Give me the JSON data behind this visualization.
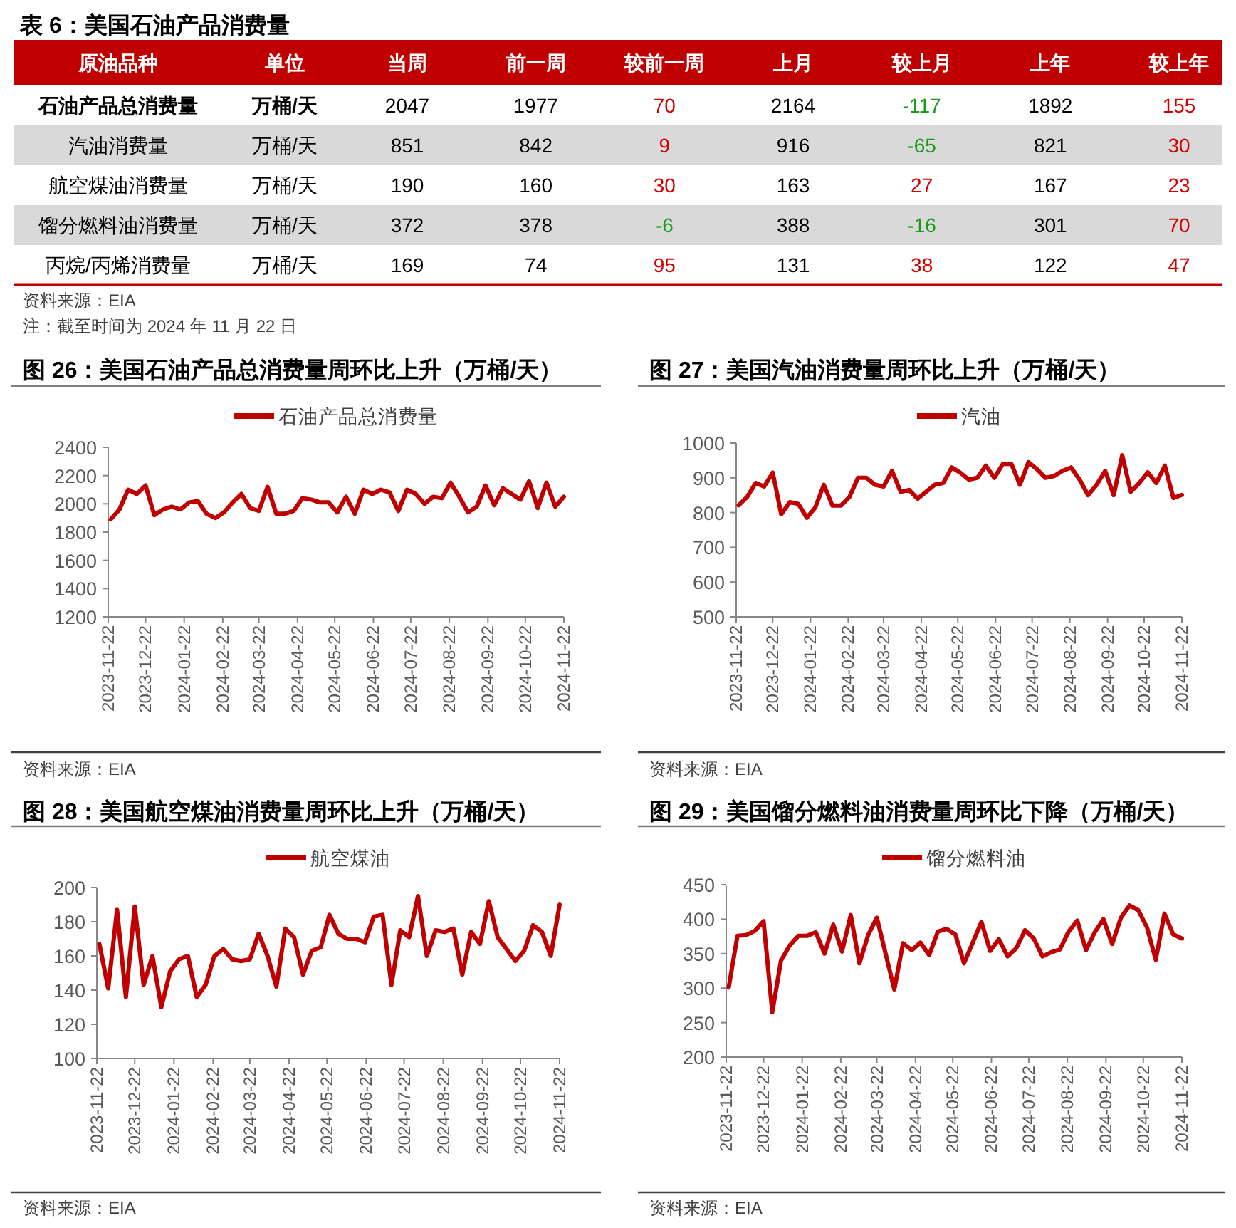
{
  "chart_data": [
    {
      "type": "heatmap",
      "title": "表 6：美国石油产品消费量",
      "ylabel": "原油品种",
      "y2label": "单位",
      "data_labels": true,
      "categories": [
        "当周",
        "前一周",
        "较前一周",
        "上月",
        "较上月",
        "上年",
        "较上年"
      ],
      "y_categories": [
        "石油产品总消费量",
        "汽油消费量",
        "航空煤油消费量",
        "馏分燃料油消费量",
        "丙烷/丙烯消费量"
      ],
      "y2_categories": [
        "万桶/天",
        "万桶/天",
        "万桶/天",
        "万桶/天",
        "万桶/天"
      ],
      "cells": [
        [
          2047,
          1977,
          70,
          2164,
          -117,
          1892,
          155
        ],
        [
          851,
          842,
          9,
          916,
          -65,
          821,
          30
        ],
        [
          190,
          160,
          30,
          163,
          27,
          167,
          23
        ],
        [
          372,
          378,
          -6,
          388,
          -16,
          301,
          70
        ],
        [
          169,
          74,
          95,
          131,
          38,
          122,
          47
        ]
      ],
      "colors": [
        [
          "#000000",
          "#000000",
          "#d40000",
          "#000000",
          "#1a9a1a",
          "#000000",
          "#d40000"
        ],
        [
          "#000000",
          "#000000",
          "#d40000",
          "#000000",
          "#1a9a1a",
          "#000000",
          "#d40000"
        ],
        [
          "#000000",
          "#000000",
          "#d40000",
          "#000000",
          "#d40000",
          "#000000",
          "#d40000"
        ],
        [
          "#000000",
          "#000000",
          "#1a9a1a",
          "#000000",
          "#1a9a1a",
          "#000000",
          "#d40000"
        ],
        [
          "#000000",
          "#000000",
          "#d40000",
          "#000000",
          "#d40000",
          "#000000",
          "#d40000"
        ]
      ],
      "annotations": [
        "资料来源：EIA",
        "注：截至时间为 2024 年 11 月 22 日"
      ]
    },
    {
      "type": "line",
      "title": "图 26：美国石油产品总消费量周环比上升（万桶/天）",
      "legend": "top",
      "x": [
        "2023-11-24",
        "2023-12-01",
        "2023-12-08",
        "2023-12-15",
        "2023-12-22",
        "2023-12-29",
        "2024-01-05",
        "2024-01-12",
        "2024-01-19",
        "2024-01-26",
        "2024-02-02",
        "2024-02-09",
        "2024-02-16",
        "2024-02-23",
        "2024-03-01",
        "2024-03-08",
        "2024-03-15",
        "2024-03-22",
        "2024-03-29",
        "2024-04-05",
        "2024-04-12",
        "2024-04-19",
        "2024-04-26",
        "2024-05-03",
        "2024-05-10",
        "2024-05-17",
        "2024-05-24",
        "2024-05-31",
        "2024-06-07",
        "2024-06-14",
        "2024-06-21",
        "2024-06-28",
        "2024-07-05",
        "2024-07-12",
        "2024-07-19",
        "2024-07-26",
        "2024-08-02",
        "2024-08-09",
        "2024-08-16",
        "2024-08-23",
        "2024-08-30",
        "2024-09-06",
        "2024-09-13",
        "2024-09-20",
        "2024-09-27",
        "2024-10-04",
        "2024-10-11",
        "2024-10-18",
        "2024-10-25",
        "2024-11-01",
        "2024-11-08",
        "2024-11-15",
        "2024-11-22"
      ],
      "xlim": [
        "2023-11-22",
        "2024-11-22"
      ],
      "xticks": [
        "2023-11-22",
        "2023-12-22",
        "2024-01-22",
        "2024-02-22",
        "2024-03-22",
        "2024-04-22",
        "2024-05-22",
        "2024-06-22",
        "2024-07-22",
        "2024-08-22",
        "2024-09-22",
        "2024-10-22",
        "2024-11-22"
      ],
      "ylim": [
        1200,
        2400
      ],
      "yticks": [
        1200,
        1400,
        1600,
        1800,
        2000,
        2200,
        2400
      ],
      "series": [
        {
          "name": "石油产品总消费量",
          "color": "#c00000",
          "values": [
            1890,
            1960,
            2100,
            2070,
            2130,
            1920,
            1960,
            1980,
            1960,
            2010,
            2020,
            1930,
            1900,
            1940,
            2010,
            2070,
            1970,
            1950,
            2120,
            1930,
            1930,
            1950,
            2040,
            2030,
            2010,
            2010,
            1940,
            2050,
            1930,
            2100,
            2070,
            2100,
            2080,
            1950,
            2100,
            2070,
            2000,
            2050,
            2040,
            2150,
            2050,
            1940,
            1980,
            2130,
            1990,
            2110,
            2070,
            2030,
            2160,
            1970,
            2150,
            1980,
            2050
          ]
        }
      ],
      "annotations": [
        "资料来源：EIA"
      ]
    },
    {
      "type": "line",
      "title": "图 27：美国汽油消费量周环比上升（万桶/天）",
      "legend": "top",
      "x": [
        "2023-11-24",
        "2023-12-01",
        "2023-12-08",
        "2023-12-15",
        "2023-12-22",
        "2023-12-29",
        "2024-01-05",
        "2024-01-12",
        "2024-01-19",
        "2024-01-26",
        "2024-02-02",
        "2024-02-09",
        "2024-02-16",
        "2024-02-23",
        "2024-03-01",
        "2024-03-08",
        "2024-03-15",
        "2024-03-22",
        "2024-03-29",
        "2024-04-05",
        "2024-04-12",
        "2024-04-19",
        "2024-04-26",
        "2024-05-03",
        "2024-05-10",
        "2024-05-17",
        "2024-05-24",
        "2024-05-31",
        "2024-06-07",
        "2024-06-14",
        "2024-06-21",
        "2024-06-28",
        "2024-07-05",
        "2024-07-12",
        "2024-07-19",
        "2024-07-26",
        "2024-08-02",
        "2024-08-09",
        "2024-08-16",
        "2024-08-23",
        "2024-08-30",
        "2024-09-06",
        "2024-09-13",
        "2024-09-20",
        "2024-09-27",
        "2024-10-04",
        "2024-10-11",
        "2024-10-18",
        "2024-10-25",
        "2024-11-01",
        "2024-11-08",
        "2024-11-15",
        "2024-11-22"
      ],
      "xlim": [
        "2023-11-22",
        "2024-11-22"
      ],
      "xticks": [
        "2023-11-22",
        "2023-12-22",
        "2024-01-22",
        "2024-02-22",
        "2024-03-22",
        "2024-04-22",
        "2024-05-22",
        "2024-06-22",
        "2024-07-22",
        "2024-08-22",
        "2024-09-22",
        "2024-10-22",
        "2024-11-22"
      ],
      "ylim": [
        500,
        1000
      ],
      "yticks": [
        500,
        600,
        700,
        800,
        900,
        1000
      ],
      "series": [
        {
          "name": "汽油",
          "color": "#c00000",
          "values": [
            821,
            845,
            885,
            875,
            915,
            795,
            830,
            825,
            785,
            815,
            880,
            820,
            820,
            845,
            900,
            900,
            880,
            875,
            920,
            860,
            865,
            840,
            860,
            880,
            885,
            930,
            915,
            895,
            900,
            935,
            900,
            940,
            940,
            880,
            945,
            925,
            900,
            905,
            920,
            930,
            895,
            850,
            880,
            920,
            850,
            965,
            860,
            885,
            916,
            885,
            935,
            842,
            851
          ]
        }
      ],
      "annotations": [
        "资料来源：EIA"
      ]
    },
    {
      "type": "line",
      "title": "图 28：美国航空煤油消费量周环比上升（万桶/天）",
      "legend": "top",
      "x": [
        "2023-11-24",
        "2023-12-01",
        "2023-12-08",
        "2023-12-15",
        "2023-12-22",
        "2023-12-29",
        "2024-01-05",
        "2024-01-12",
        "2024-01-19",
        "2024-01-26",
        "2024-02-02",
        "2024-02-09",
        "2024-02-16",
        "2024-02-23",
        "2024-03-01",
        "2024-03-08",
        "2024-03-15",
        "2024-03-22",
        "2024-03-29",
        "2024-04-05",
        "2024-04-12",
        "2024-04-19",
        "2024-04-26",
        "2024-05-03",
        "2024-05-10",
        "2024-05-17",
        "2024-05-24",
        "2024-05-31",
        "2024-06-07",
        "2024-06-14",
        "2024-06-21",
        "2024-06-28",
        "2024-07-05",
        "2024-07-12",
        "2024-07-19",
        "2024-07-26",
        "2024-08-02",
        "2024-08-09",
        "2024-08-16",
        "2024-08-23",
        "2024-08-30",
        "2024-09-06",
        "2024-09-13",
        "2024-09-20",
        "2024-09-27",
        "2024-10-04",
        "2024-10-11",
        "2024-10-18",
        "2024-10-25",
        "2024-11-01",
        "2024-11-08",
        "2024-11-15",
        "2024-11-22"
      ],
      "xlim": [
        "2023-11-22",
        "2024-11-22"
      ],
      "xticks": [
        "2023-11-22",
        "2023-12-22",
        "2024-01-22",
        "2024-02-22",
        "2024-03-22",
        "2024-04-22",
        "2024-05-22",
        "2024-06-22",
        "2024-07-22",
        "2024-08-22",
        "2024-09-22",
        "2024-10-22",
        "2024-11-22"
      ],
      "ylim": [
        100,
        200
      ],
      "yticks": [
        100,
        120,
        140,
        160,
        180,
        200
      ],
      "series": [
        {
          "name": "航空煤油",
          "color": "#c00000",
          "values": [
            167,
            141,
            187,
            136,
            189,
            143,
            160,
            130,
            151,
            158,
            160,
            136,
            143,
            160,
            164,
            158,
            157,
            158,
            173,
            160,
            142,
            176,
            171,
            149,
            163,
            165,
            184,
            173,
            170,
            170,
            168,
            183,
            184,
            143,
            175,
            171,
            195,
            160,
            175,
            174,
            176,
            149,
            174,
            167,
            192,
            171,
            164,
            157,
            163,
            178,
            174,
            160,
            190
          ]
        }
      ],
      "annotations": [
        "资料来源：EIA"
      ]
    },
    {
      "type": "line",
      "title": "图 29：美国馏分燃料油消费量周环比下降（万桶/天）",
      "legend": "top",
      "x": [
        "2023-11-24",
        "2023-12-01",
        "2023-12-08",
        "2023-12-15",
        "2023-12-22",
        "2023-12-29",
        "2024-01-05",
        "2024-01-12",
        "2024-01-19",
        "2024-01-26",
        "2024-02-02",
        "2024-02-09",
        "2024-02-16",
        "2024-02-23",
        "2024-03-01",
        "2024-03-08",
        "2024-03-15",
        "2024-03-22",
        "2024-03-29",
        "2024-04-05",
        "2024-04-12",
        "2024-04-19",
        "2024-04-26",
        "2024-05-03",
        "2024-05-10",
        "2024-05-17",
        "2024-05-24",
        "2024-05-31",
        "2024-06-07",
        "2024-06-14",
        "2024-06-21",
        "2024-06-28",
        "2024-07-05",
        "2024-07-12",
        "2024-07-19",
        "2024-07-26",
        "2024-08-02",
        "2024-08-09",
        "2024-08-16",
        "2024-08-23",
        "2024-08-30",
        "2024-09-06",
        "2024-09-13",
        "2024-09-20",
        "2024-09-27",
        "2024-10-04",
        "2024-10-11",
        "2024-10-18",
        "2024-10-25",
        "2024-11-01",
        "2024-11-08",
        "2024-11-15",
        "2024-11-22"
      ],
      "xlim": [
        "2023-11-22",
        "2024-11-22"
      ],
      "xticks": [
        "2023-11-22",
        "2023-12-22",
        "2024-01-22",
        "2024-02-22",
        "2024-03-22",
        "2024-04-22",
        "2024-05-22",
        "2024-06-22",
        "2024-07-22",
        "2024-08-22",
        "2024-09-22",
        "2024-10-22",
        "2024-11-22"
      ],
      "ylim": [
        200,
        450
      ],
      "yticks": [
        200,
        250,
        300,
        350,
        400,
        450
      ],
      "series": [
        {
          "name": "馏分燃料油",
          "color": "#c00000",
          "values": [
            301,
            376,
            377,
            383,
            397,
            265,
            340,
            362,
            376,
            376,
            381,
            350,
            392,
            353,
            406,
            336,
            377,
            402,
            350,
            298,
            365,
            355,
            366,
            348,
            382,
            386,
            378,
            336,
            366,
            396,
            354,
            371,
            346,
            358,
            384,
            372,
            346,
            352,
            356,
            382,
            398,
            355,
            381,
            400,
            364,
            402,
            420,
            413,
            388,
            341,
            408,
            378,
            372
          ]
        }
      ],
      "annotations": [
        "资料来源：EIA"
      ]
    }
  ]
}
